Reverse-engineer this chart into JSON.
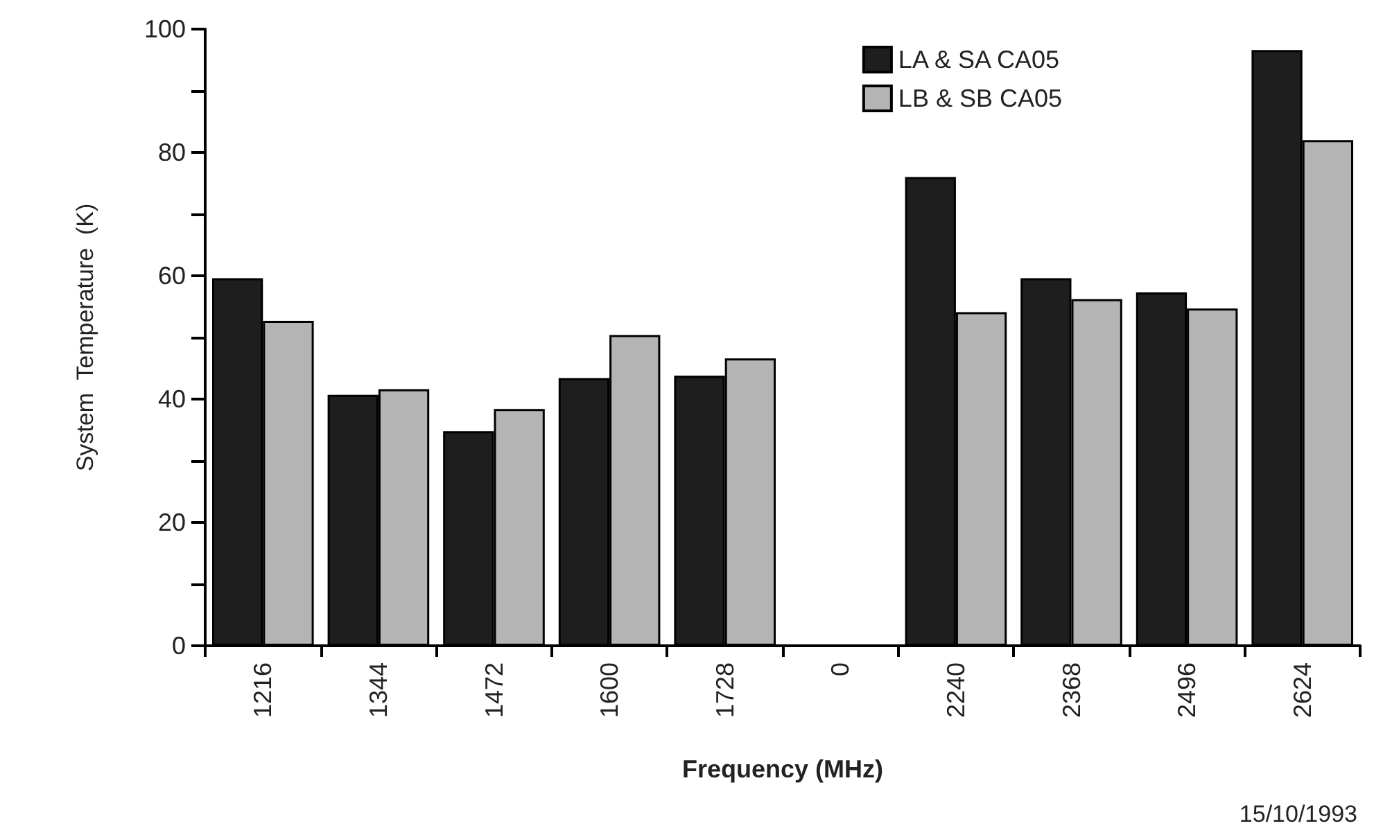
{
  "chart_data": {
    "type": "bar",
    "xlabel": "Frequency (MHz)",
    "ylabel": "System  Temperature  (K)",
    "categories": [
      "1216",
      "1344",
      "1472",
      "1600",
      "1728",
      "0",
      "2240",
      "2368",
      "2496",
      "2624"
    ],
    "series": [
      {
        "name": "LA & SA CA05",
        "color": "#1e1e1e",
        "values": [
          59.6,
          40.7,
          34.8,
          43.4,
          43.8,
          null,
          76.0,
          59.6,
          57.3,
          96.6
        ]
      },
      {
        "name": "LB & SB CA05",
        "color": "#b4b4b4",
        "values": [
          52.7,
          41.6,
          38.4,
          50.4,
          46.6,
          null,
          54.1,
          56.2,
          54.7,
          82.0
        ]
      }
    ],
    "ylim": [
      0,
      100
    ],
    "yticks": [
      0,
      {
        "value": 10,
        "label": null
      },
      20,
      {
        "value": 30,
        "label": null
      },
      40,
      {
        "value": 50,
        "label": null
      },
      60,
      {
        "value": 70,
        "label": null
      },
      80,
      {
        "value": 90,
        "label": null
      },
      100
    ],
    "grid": false,
    "legend": "top right",
    "annotations": [
      "15/10/1993"
    ]
  }
}
